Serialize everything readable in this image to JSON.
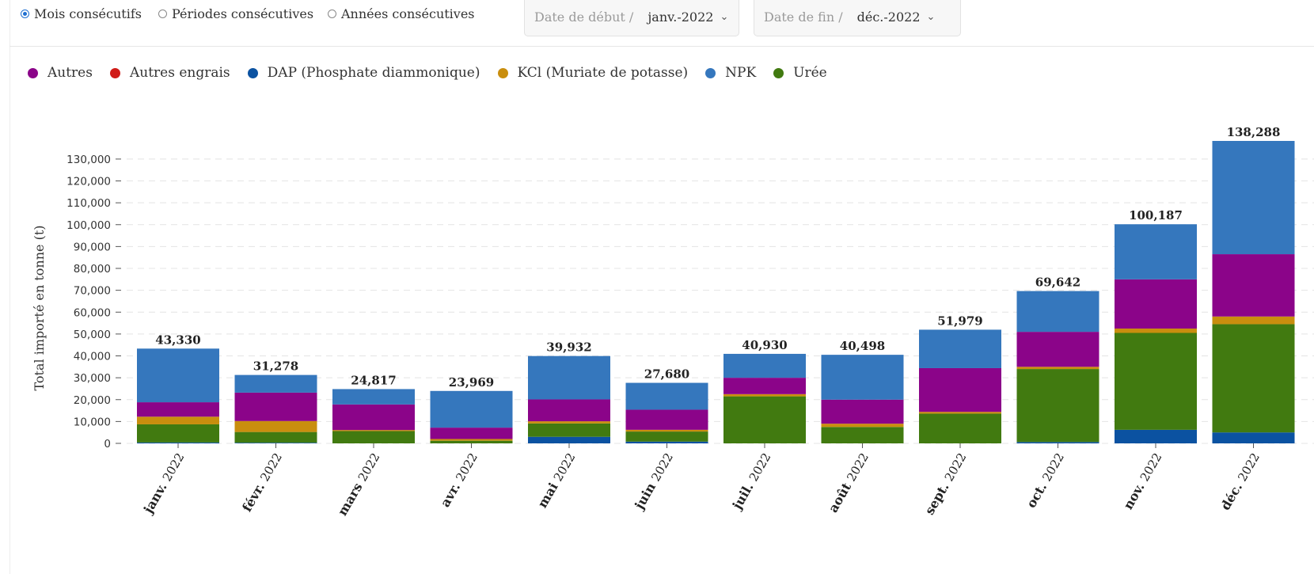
{
  "period_options": [
    {
      "label": "Mois consécutifs",
      "checked": true
    },
    {
      "label": "Périodes consécutives",
      "checked": false
    },
    {
      "label": "Années consécutives",
      "checked": false
    }
  ],
  "start_date": {
    "label": "Date de début /",
    "value": "janv.-2022"
  },
  "end_date": {
    "label": "Date de fin /",
    "value": "déc.-2022"
  },
  "chart_data": {
    "type": "bar",
    "stacked": true,
    "ylabel": "Total importé en tonne (t)",
    "ylim": [
      0,
      138288
    ],
    "yticks": [
      0,
      10000,
      20000,
      30000,
      40000,
      50000,
      60000,
      70000,
      80000,
      90000,
      100000,
      110000,
      120000,
      130000
    ],
    "ytick_labels": [
      "0",
      "10,000",
      "20,000",
      "30,000",
      "40,000",
      "50,000",
      "60,000",
      "70,000",
      "80,000",
      "90,000",
      "100,000",
      "110,000",
      "120,000",
      "130,000"
    ],
    "grid": true,
    "legend_position": "top-left",
    "categories": [
      {
        "month": "janv.",
        "year": "2022"
      },
      {
        "month": "févr.",
        "year": "2022"
      },
      {
        "month": "mars",
        "year": "2022"
      },
      {
        "month": "avr.",
        "year": "2022"
      },
      {
        "month": "mai",
        "year": "2022"
      },
      {
        "month": "juin",
        "year": "2022"
      },
      {
        "month": "juil.",
        "year": "2022"
      },
      {
        "month": "août",
        "year": "2022"
      },
      {
        "month": "sept.",
        "year": "2022"
      },
      {
        "month": "oct.",
        "year": "2022"
      },
      {
        "month": "nov.",
        "year": "2022"
      },
      {
        "month": "déc.",
        "year": "2022"
      }
    ],
    "totals": [
      43330,
      31278,
      24817,
      23969,
      39932,
      27680,
      40930,
      40498,
      51979,
      69642,
      100187,
      138288
    ],
    "total_labels": [
      "43,330",
      "31,278",
      "24,817",
      "23,969",
      "39,932",
      "27,680",
      "40,930",
      "40,498",
      "51,979",
      "69,642",
      "100,187",
      "138,288"
    ],
    "series": [
      {
        "name": "Autres",
        "color": "#8b0489",
        "values": [
          6600,
          13000,
          11700,
          5200,
          10000,
          9200,
          7500,
          11000,
          20000,
          16000,
          22500,
          28500
        ]
      },
      {
        "name": "Autres engrais",
        "color": "#d01c18",
        "values": [
          0,
          0,
          0,
          0,
          0,
          0,
          0,
          0,
          0,
          0,
          0,
          0
        ]
      },
      {
        "name": "DAP (Phosphate diammonique)",
        "color": "#0b52a1",
        "values": [
          400,
          300,
          0,
          0,
          3000,
          800,
          0,
          0,
          0,
          600,
          6200,
          5000
        ]
      },
      {
        "name": "KCl (Muriate de potasse)",
        "color": "#c98e0e",
        "values": [
          3500,
          5000,
          500,
          800,
          1000,
          800,
          1000,
          1500,
          800,
          1000,
          2000,
          3500
        ]
      },
      {
        "name": "NPK",
        "color": "#3577bd",
        "values": [
          24530,
          8078,
          7017,
          16769,
          19832,
          12280,
          10930,
          20498,
          17579,
          18642,
          25187,
          51788
        ]
      },
      {
        "name": "Urée",
        "color": "#417a10",
        "values": [
          8300,
          4900,
          5600,
          1200,
          6100,
          4600,
          21500,
          7500,
          13600,
          33400,
          44300,
          49500
        ]
      }
    ],
    "stack_order": [
      "DAP (Phosphate diammonique)",
      "Urée",
      "KCl (Muriate de potasse)",
      "Autres engrais",
      "Autres",
      "NPK"
    ]
  }
}
